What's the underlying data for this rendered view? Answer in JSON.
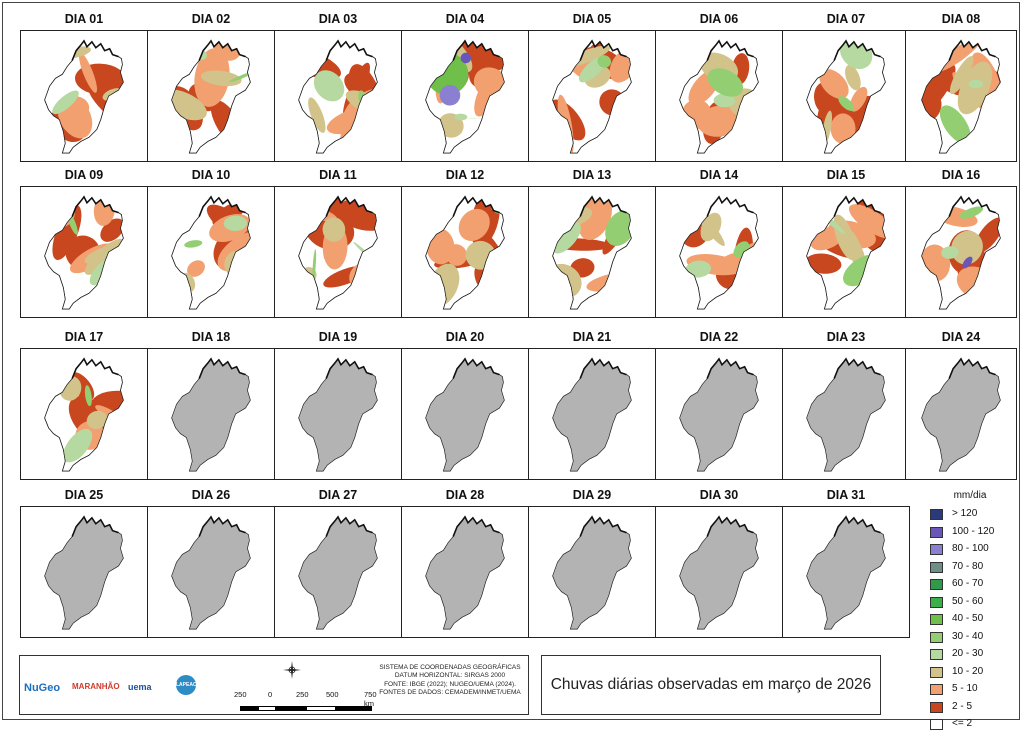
{
  "days": [
    {
      "label": "DIA 01",
      "state": "data"
    },
    {
      "label": "DIA 02",
      "state": "data"
    },
    {
      "label": "DIA 03",
      "state": "data"
    },
    {
      "label": "DIA 04",
      "state": "data"
    },
    {
      "label": "DIA 05",
      "state": "data"
    },
    {
      "label": "DIA 06",
      "state": "data"
    },
    {
      "label": "DIA 07",
      "state": "data"
    },
    {
      "label": "DIA 08",
      "state": "data"
    },
    {
      "label": "DIA 09",
      "state": "data"
    },
    {
      "label": "DIA 10",
      "state": "data"
    },
    {
      "label": "DIA 11",
      "state": "data"
    },
    {
      "label": "DIA 12",
      "state": "data"
    },
    {
      "label": "DIA 13",
      "state": "data"
    },
    {
      "label": "DIA 14",
      "state": "data"
    },
    {
      "label": "DIA 15",
      "state": "data"
    },
    {
      "label": "DIA 16",
      "state": "data"
    },
    {
      "label": "DIA 17",
      "state": "data"
    },
    {
      "label": "DIA 18",
      "state": "nodata"
    },
    {
      "label": "DIA 19",
      "state": "nodata"
    },
    {
      "label": "DIA 20",
      "state": "nodata"
    },
    {
      "label": "DIA 21",
      "state": "nodata"
    },
    {
      "label": "DIA 22",
      "state": "nodata"
    },
    {
      "label": "DIA 23",
      "state": "nodata"
    },
    {
      "label": "DIA 24",
      "state": "nodata"
    },
    {
      "label": "DIA 25",
      "state": "nodata"
    },
    {
      "label": "DIA 26",
      "state": "nodata"
    },
    {
      "label": "DIA 27",
      "state": "nodata"
    },
    {
      "label": "DIA 28",
      "state": "nodata"
    },
    {
      "label": "DIA 29",
      "state": "nodata"
    },
    {
      "label": "DIA 30",
      "state": "nodata"
    },
    {
      "label": "DIA 31",
      "state": "nodata"
    }
  ],
  "legend": {
    "title": "mm/dia",
    "items": [
      {
        "label": "> 120",
        "color": "#2b3a7a"
      },
      {
        "label": "100 - 120",
        "color": "#6a55b8"
      },
      {
        "label": "80 - 100",
        "color": "#8a7fd0"
      },
      {
        "label": "70 - 80",
        "color": "#6e8f86"
      },
      {
        "label": "60 - 70",
        "color": "#2f9a4a"
      },
      {
        "label": "50 - 60",
        "color": "#3ab04a"
      },
      {
        "label": "40 - 50",
        "color": "#6fbf4a"
      },
      {
        "label": "30 - 40",
        "color": "#93cf72"
      },
      {
        "label": "20 - 30",
        "color": "#b5d9a0"
      },
      {
        "label": "10 - 20",
        "color": "#d2c38a"
      },
      {
        "label": "5 - 10",
        "color": "#f2a070"
      },
      {
        "label": "2 - 5",
        "color": "#c8471e"
      },
      {
        "label": "<= 2",
        "color": "#ffffff"
      }
    ]
  },
  "colors": {
    "nodata": "#b3b3b3",
    "outline": "#222222"
  },
  "title": "Chuvas diárias observadas em março de 2026",
  "credits": [
    "SISTEMA DE COORDENADAS GEOGRÁFICAS",
    "DATUM HORIZONTAL: SIRGAS 2000",
    "FONTE: IBGE (2022); NUGEO/UEMA (2024).",
    "FONTES DE DADOS: CEMADEM/INMET/UEMA"
  ],
  "scale": {
    "labels": [
      "250",
      "0",
      "250",
      "500",
      "750 km"
    ]
  },
  "logos": [
    {
      "text": "NuGeo",
      "icon": "nugeo-logo",
      "color": "#1b6fbf"
    },
    {
      "text": "MARANHÃO",
      "icon": "maranhao-logo",
      "color": "#d23a2a"
    },
    {
      "text": "uema",
      "icon": "uema-logo",
      "color": "#1c4f9c"
    },
    {
      "text": "LAPEAC",
      "icon": "lapeac-logo",
      "color": "#2e8bc4"
    }
  ]
}
